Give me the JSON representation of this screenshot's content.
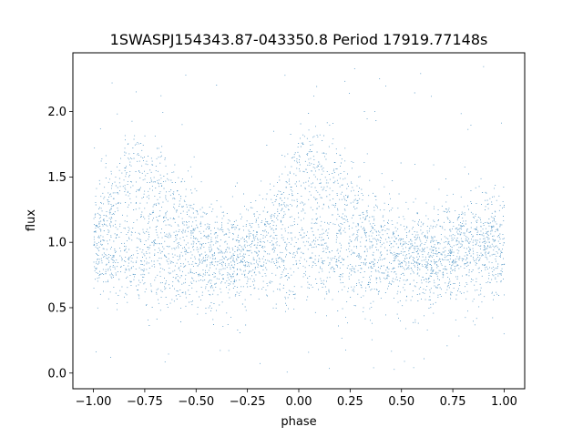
{
  "chart_data": {
    "type": "scatter",
    "title": "1SWASPJ154343.87-043350.8 Period 17919.77148s",
    "xlabel": "phase",
    "ylabel": "flux",
    "xlim": [
      -1.1,
      1.1
    ],
    "ylim": [
      -0.12,
      2.45
    ],
    "xticks": [
      -1.0,
      -0.75,
      -0.5,
      -0.25,
      0.0,
      0.25,
      0.5,
      0.75,
      1.0
    ],
    "xtick_labels": [
      "−1.00",
      "−0.75",
      "−0.50",
      "−0.25",
      "0.00",
      "0.25",
      "0.50",
      "0.75",
      "1.00"
    ],
    "yticks": [
      0.0,
      0.5,
      1.0,
      1.5,
      2.0
    ],
    "ytick_labels": [
      "0.0",
      "0.5",
      "1.0",
      "1.5",
      "2.0"
    ],
    "point_color": "#1f77b4",
    "grid": false,
    "legend": "none",
    "series": [
      {
        "phase": [
          -1.0,
          -0.95,
          -0.9,
          -0.85,
          -0.8,
          -0.75,
          -0.7,
          -0.65,
          -0.6,
          -0.55,
          -0.5,
          -0.45,
          -0.4,
          -0.35,
          -0.3,
          -0.25,
          -0.2,
          -0.15,
          -0.1,
          -0.05,
          0.0,
          0.05,
          0.1,
          0.15,
          0.2,
          0.25,
          0.3,
          0.35,
          0.4,
          0.45,
          0.5,
          0.55,
          0.6,
          0.65,
          0.7,
          0.75,
          0.8,
          0.85,
          0.9,
          0.95,
          1.0
        ],
        "flux_upper_branch": [
          1.05,
          1.2,
          1.38,
          1.5,
          1.55,
          1.52,
          1.45,
          1.38,
          1.28,
          1.18,
          1.1,
          1.02,
          0.96,
          0.92,
          0.92,
          0.95,
          1.0,
          1.1,
          1.25,
          1.42,
          1.52,
          1.55,
          1.52,
          1.45,
          1.38,
          1.3,
          1.22,
          1.15,
          1.08,
          1.02,
          0.97,
          0.93,
          0.92,
          0.93,
          0.96,
          1.0,
          1.05,
          1.05,
          1.05,
          1.05,
          1.05
        ],
        "flux_lower_branch": [
          0.92,
          0.9,
          0.9,
          0.9,
          0.9,
          0.9,
          0.88,
          0.86,
          0.84,
          0.83,
          0.82,
          0.82,
          0.83,
          0.84,
          0.86,
          0.88,
          0.9,
          0.91,
          0.92,
          0.92,
          0.92,
          0.9,
          0.9,
          0.9,
          0.9,
          0.9,
          0.88,
          0.86,
          0.84,
          0.83,
          0.82,
          0.82,
          0.83,
          0.84,
          0.86,
          0.88,
          0.9,
          0.91,
          0.92,
          0.92,
          0.92
        ],
        "scatter_sigma": 0.18,
        "outlier_range": [
          0.0,
          2.35
        ]
      }
    ]
  }
}
